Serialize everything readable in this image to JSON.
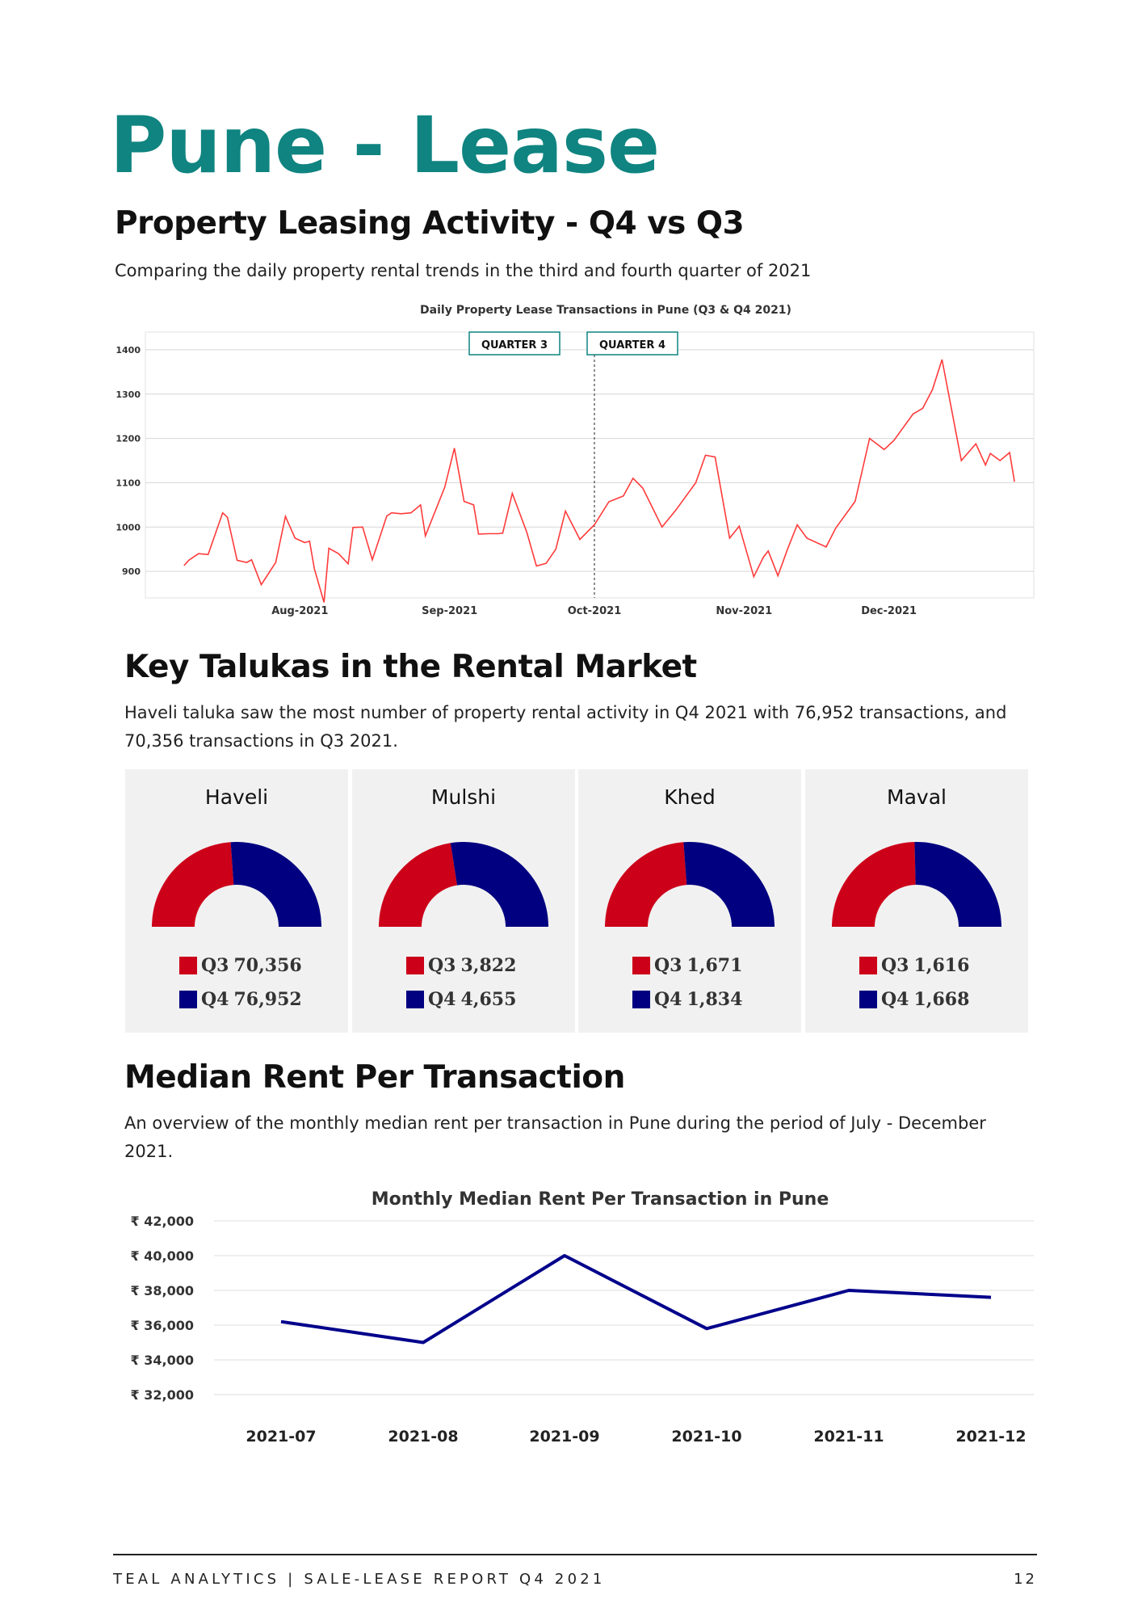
{
  "title": "Pune - Lease",
  "section1": {
    "heading": "Property Leasing Activity - Q4 vs Q3",
    "text": "Comparing the daily property rental trends in the third and fourth quarter of 2021"
  },
  "section2": {
    "heading": "Key Talukas in the Rental Market",
    "text_line1": "Haveli taluka saw the most number of property rental activity in Q4 2021 with 76,952 transactions, and",
    "text_line2": "70,356 transactions in Q3 2021."
  },
  "section3": {
    "heading": "Median Rent Per Transaction",
    "text_line1": "An overview of the monthly median rent per transaction in Pune during the period of July - December",
    "text_line2": "2021."
  },
  "talukas": [
    {
      "name": "Haveli",
      "q3_label": "Q3",
      "q3_value": "70,356",
      "q4_label": "Q4",
      "q4_value": "76,952",
      "q3": 70356,
      "q4": 76952
    },
    {
      "name": "Mulshi",
      "q3_label": "Q3",
      "q3_value": "3,822",
      "q4_label": "Q4",
      "q4_value": "4,655",
      "q3": 3822,
      "q4": 4655
    },
    {
      "name": "Khed",
      "q3_label": "Q3",
      "q3_value": "1,671",
      "q4_label": "Q4",
      "q4_value": "1,834",
      "q3": 1671,
      "q4": 1834
    },
    {
      "name": "Maval",
      "q3_label": "Q3",
      "q3_value": "1,616",
      "q4_label": "Q4",
      "q4_value": "1,668",
      "q3": 1616,
      "q4": 1668
    }
  ],
  "colors": {
    "title": "#0f8480",
    "q3": "#cc0019",
    "q4": "#000080",
    "daily_line": "#ff3b3b",
    "median_line": "#00008b"
  },
  "chart_data": [
    {
      "type": "line",
      "title": "Daily Property Lease Transactions in Pune (Q3 & Q4 2021)",
      "annotations": [
        "QUARTER 3",
        "QUARTER 4"
      ],
      "quarter_divider": "2021-10-01",
      "x_ticks": [
        {
          "date": "2021-08-01",
          "label": "Aug-2021"
        },
        {
          "date": "2021-09-01",
          "label": "Sep-2021"
        },
        {
          "date": "2021-10-01",
          "label": "Oct-2021"
        },
        {
          "date": "2021-11-01",
          "label": "Nov-2021"
        },
        {
          "date": "2021-12-01",
          "label": "Dec-2021"
        }
      ],
      "y_ticks": [
        900,
        1000,
        1100,
        1200,
        1300,
        1400
      ],
      "ylim": [
        840,
        1440
      ],
      "xlim": [
        "2021-06-30",
        "2021-12-31"
      ],
      "grid": true,
      "points": [
        [
          "2021-07-08",
          913
        ],
        [
          "2021-07-09",
          925
        ],
        [
          "2021-07-11",
          940
        ],
        [
          "2021-07-13",
          938
        ],
        [
          "2021-07-16",
          1032
        ],
        [
          "2021-07-17",
          1022
        ],
        [
          "2021-07-19",
          925
        ],
        [
          "2021-07-21",
          920
        ],
        [
          "2021-07-22",
          926
        ],
        [
          "2021-07-24",
          870
        ],
        [
          "2021-07-27",
          920
        ],
        [
          "2021-07-29",
          1024
        ],
        [
          "2021-07-31",
          975
        ],
        [
          "2021-08-02",
          965
        ],
        [
          "2021-08-03",
          968
        ],
        [
          "2021-08-04",
          906
        ],
        [
          "2021-08-06",
          830
        ],
        [
          "2021-08-07",
          952
        ],
        [
          "2021-08-09",
          940
        ],
        [
          "2021-08-11",
          917
        ],
        [
          "2021-08-12",
          999
        ],
        [
          "2021-08-14",
          1000
        ],
        [
          "2021-08-16",
          926
        ],
        [
          "2021-08-19",
          1025
        ],
        [
          "2021-08-20",
          1032
        ],
        [
          "2021-08-22",
          1030
        ],
        [
          "2021-08-24",
          1032
        ],
        [
          "2021-08-26",
          1050
        ],
        [
          "2021-08-27",
          980
        ],
        [
          "2021-08-31",
          1090
        ],
        [
          "2021-09-02",
          1178
        ],
        [
          "2021-09-04",
          1058
        ],
        [
          "2021-09-06",
          1050
        ],
        [
          "2021-09-07",
          984
        ],
        [
          "2021-09-09",
          985
        ],
        [
          "2021-09-11",
          985
        ],
        [
          "2021-09-12",
          986
        ],
        [
          "2021-09-14",
          1076
        ],
        [
          "2021-09-17",
          988
        ],
        [
          "2021-09-19",
          912
        ],
        [
          "2021-09-21",
          918
        ],
        [
          "2021-09-23",
          950
        ],
        [
          "2021-09-25",
          1036
        ],
        [
          "2021-09-28",
          972
        ],
        [
          "2021-10-01",
          1005
        ],
        [
          "2021-10-04",
          1057
        ],
        [
          "2021-10-07",
          1070
        ],
        [
          "2021-10-09",
          1110
        ],
        [
          "2021-10-11",
          1088
        ],
        [
          "2021-10-15",
          1000
        ],
        [
          "2021-10-18",
          1040
        ],
        [
          "2021-10-22",
          1100
        ],
        [
          "2021-10-24",
          1162
        ],
        [
          "2021-10-26",
          1158
        ],
        [
          "2021-10-29",
          975
        ],
        [
          "2021-10-31",
          1002
        ],
        [
          "2021-11-03",
          888
        ],
        [
          "2021-11-05",
          932
        ],
        [
          "2021-11-06",
          946
        ],
        [
          "2021-11-08",
          890
        ],
        [
          "2021-11-10",
          950
        ],
        [
          "2021-11-12",
          1005
        ],
        [
          "2021-11-14",
          975
        ],
        [
          "2021-11-18",
          955
        ],
        [
          "2021-11-20",
          998
        ],
        [
          "2021-11-24",
          1058
        ],
        [
          "2021-11-27",
          1200
        ],
        [
          "2021-11-30",
          1175
        ],
        [
          "2021-12-02",
          1195
        ],
        [
          "2021-12-06",
          1255
        ],
        [
          "2021-12-08",
          1268
        ],
        [
          "2021-12-10",
          1310
        ],
        [
          "2021-12-12",
          1378
        ],
        [
          "2021-12-16",
          1150
        ],
        [
          "2021-12-19",
          1188
        ],
        [
          "2021-12-21",
          1140
        ],
        [
          "2021-12-22",
          1166
        ],
        [
          "2021-12-24",
          1150
        ],
        [
          "2021-12-26",
          1168
        ],
        [
          "2021-12-27",
          1102
        ]
      ]
    },
    {
      "type": "line",
      "title": "Monthly Median Rent Per Transaction in Pune",
      "categories": [
        "2021-07",
        "2021-08",
        "2021-09",
        "2021-10",
        "2021-11",
        "2021-12"
      ],
      "values": [
        36200,
        35000,
        40000,
        35800,
        38000,
        37600
      ],
      "y_ticks": [
        "₹ 32,000",
        "₹ 34,000",
        "₹ 36,000",
        "₹ 38,000",
        "₹ 40,000",
        "₹ 42,000"
      ],
      "ylim": [
        32000,
        42000
      ],
      "grid": true
    }
  ],
  "footer": {
    "text": "TEAL ANALYTICS | SALE-LEASE REPORT Q4 2021",
    "page": "12"
  }
}
